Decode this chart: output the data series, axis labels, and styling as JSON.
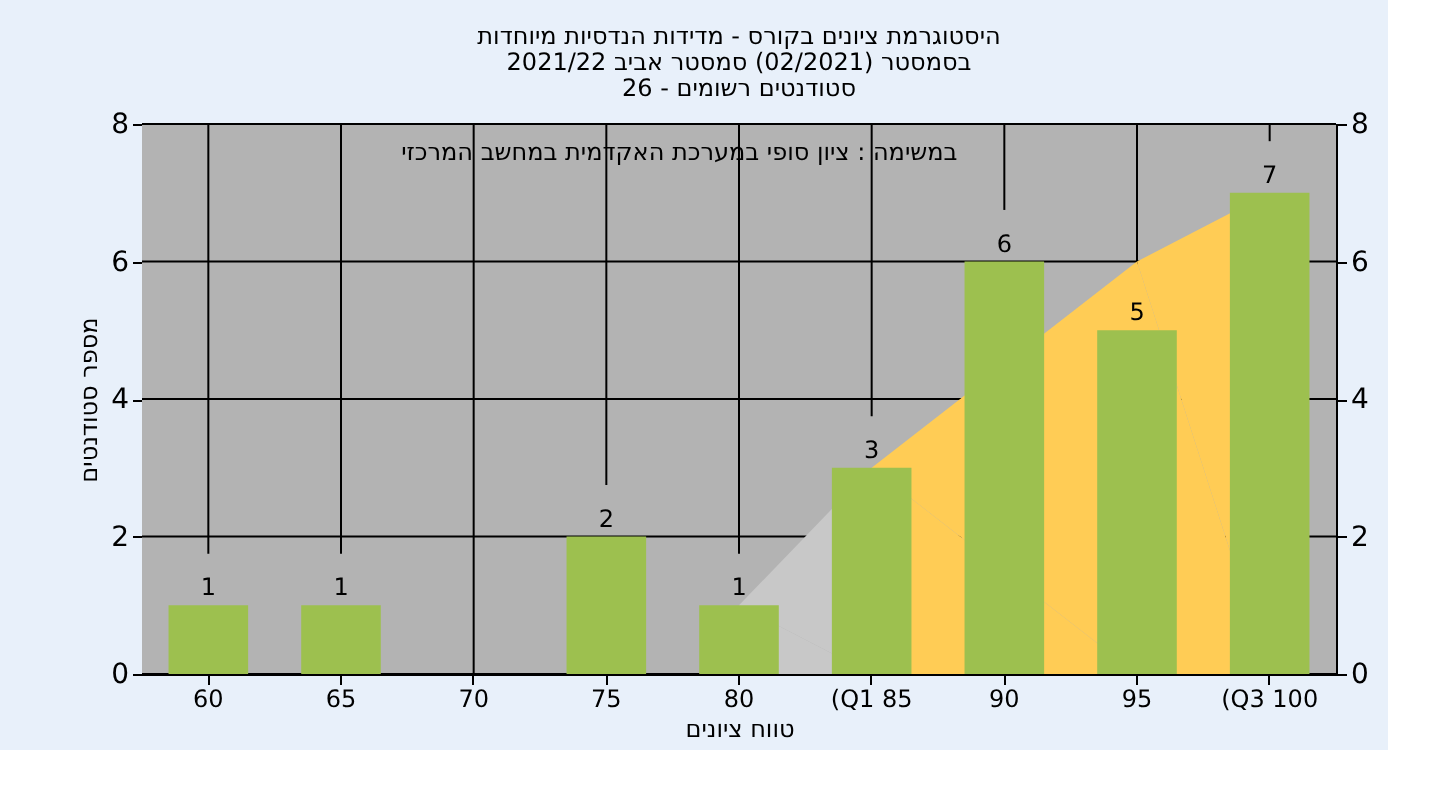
{
  "chart_data": {
    "type": "bar",
    "title": [
      "היסטוגרמת ציונים בקורס - מדידות הנדסיות מיוחדות",
      "בסמסטר  (02/2021)  סמסטר אביב 2021/22",
      "סטודנטים רשומים - 26"
    ],
    "xlabel": "טווח ציונים",
    "ylabel": "מספר סטודנטים",
    "categories": [
      "60",
      "65",
      "70",
      "75",
      "80",
      "(Q1 85",
      "90",
      "95",
      "(Q3 100"
    ],
    "series": [
      {
        "type": "area",
        "color": "#c8c8c8",
        "x": [
          "80",
          "(Q1 85"
        ],
        "values": [
          1,
          3
        ]
      },
      {
        "type": "area",
        "color": "#ffcc55",
        "x": [
          "(Q1 85",
          "95",
          "(Q3 100"
        ],
        "values": [
          3,
          6,
          7
        ]
      },
      {
        "color": "#9dc04f",
        "values": [
          1,
          1,
          0,
          2,
          1,
          3,
          6,
          5,
          7
        ],
        "value_labels": [
          "1",
          "1",
          null,
          "2",
          "1",
          "3",
          "6",
          "5",
          "7"
        ]
      }
    ],
    "ylim": [
      0,
      8
    ],
    "yticks": [
      0,
      2,
      4,
      6,
      8
    ],
    "y2lim": [
      0,
      8
    ],
    "y2ticks": [
      0,
      2,
      4,
      6,
      8
    ],
    "grid": true,
    "annotations": [
      "במשימה : ציון סופי במערכת האקדמית במחשב המרכזי"
    ]
  }
}
